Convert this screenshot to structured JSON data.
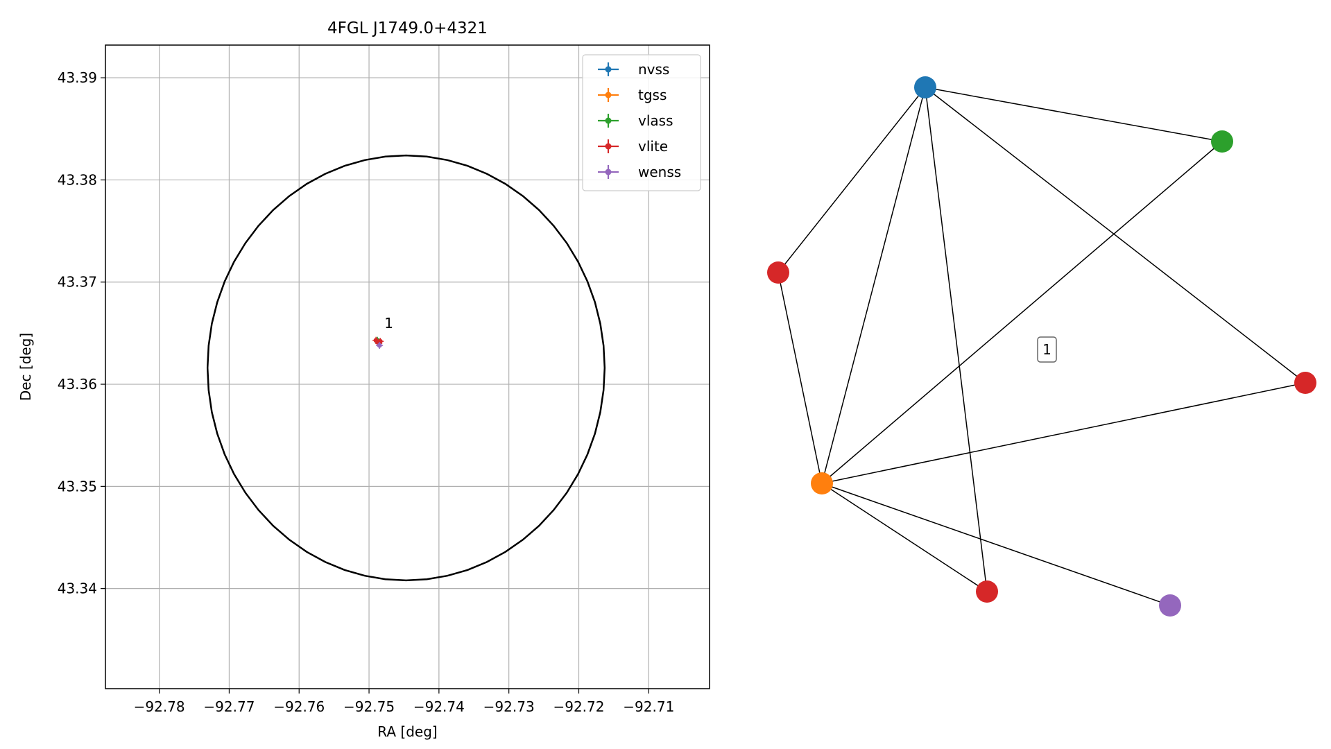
{
  "chart_data": [
    {
      "type": "scatter",
      "title": "4FGL J1749.0+4321",
      "xlabel": "RA [deg]",
      "ylabel": "Dec [deg]",
      "xlim": [
        -92.7877,
        -92.7013
      ],
      "ylim": [
        43.3302,
        43.3932
      ],
      "xticks": [
        -92.78,
        -92.77,
        -92.76,
        -92.75,
        -92.74,
        -92.73,
        -92.72,
        -92.71
      ],
      "xtick_labels": [
        "−92.78",
        "−92.77",
        "−92.76",
        "−92.75",
        "−92.74",
        "−92.73",
        "−92.72",
        "−92.71"
      ],
      "yticks": [
        43.34,
        43.35,
        43.36,
        43.37,
        43.38,
        43.39
      ],
      "ytick_labels": [
        "43.34",
        "43.35",
        "43.36",
        "43.37",
        "43.38",
        "43.39"
      ],
      "grid": true,
      "legend_position": "top-right",
      "ellipse": {
        "center": [
          -92.7447,
          43.3616
        ],
        "ra_radius": 0.0284,
        "dec_radius": 0.0208,
        "color": "#000000"
      },
      "annotations": [
        {
          "text": "1",
          "x": -92.7478,
          "y": 43.3655
        }
      ],
      "series": [
        {
          "name": "nvss",
          "color": "#1f77b4",
          "points": [
            {
              "x": -92.7487,
              "y": 43.3641
            }
          ]
        },
        {
          "name": "tgss",
          "color": "#ff7f0e",
          "points": [
            {
              "x": -92.7488,
              "y": 43.3642
            }
          ]
        },
        {
          "name": "vlass",
          "color": "#2ca02c",
          "points": [
            {
              "x": -92.7488,
              "y": 43.3643
            }
          ]
        },
        {
          "name": "vlite",
          "color": "#d62728",
          "points": [
            {
              "x": -92.749,
              "y": 43.3643
            },
            {
              "x": -92.7484,
              "y": 43.3642
            },
            {
              "x": -92.7486,
              "y": 43.364
            }
          ]
        },
        {
          "name": "wenss",
          "color": "#9467bd",
          "points": [
            {
              "x": -92.7485,
              "y": 43.3638
            }
          ]
        }
      ]
    },
    {
      "type": "network",
      "label": "1",
      "nodes": [
        {
          "id": "nvss",
          "color": "#1f77b4"
        },
        {
          "id": "vlass",
          "color": "#2ca02c"
        },
        {
          "id": "vlite_a",
          "color": "#d62728"
        },
        {
          "id": "vlite_b",
          "color": "#d62728"
        },
        {
          "id": "tgss",
          "color": "#ff7f0e"
        },
        {
          "id": "vlite_c",
          "color": "#d62728"
        },
        {
          "id": "wenss",
          "color": "#9467bd"
        }
      ],
      "edges": [
        [
          "nvss",
          "vlass"
        ],
        [
          "nvss",
          "vlite_a"
        ],
        [
          "nvss",
          "tgss"
        ],
        [
          "nvss",
          "vlite_c"
        ],
        [
          "nvss",
          "vlite_b"
        ],
        [
          "vlass",
          "tgss"
        ],
        [
          "vlite_a",
          "tgss"
        ],
        [
          "vlite_b",
          "tgss"
        ],
        [
          "tgss",
          "vlite_c"
        ],
        [
          "tgss",
          "wenss"
        ]
      ]
    }
  ]
}
